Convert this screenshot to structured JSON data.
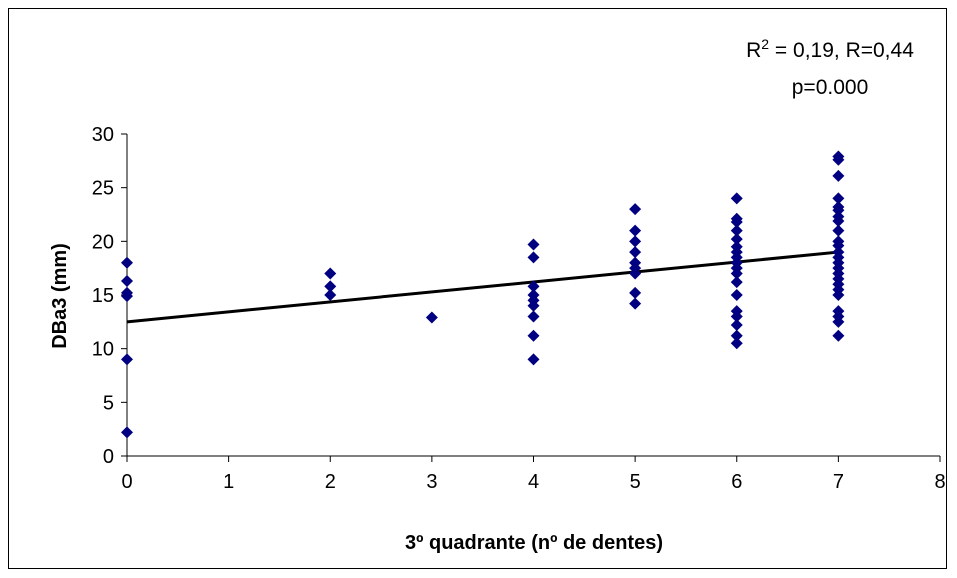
{
  "chart_data": {
    "type": "scatter",
    "xlabel": "3º quadrante (nº de dentes)",
    "ylabel": "DBa3 (mm)",
    "xlim": [
      0,
      8
    ],
    "ylim": [
      0,
      30
    ],
    "x_ticks": [
      0,
      1,
      2,
      3,
      4,
      5,
      6,
      7,
      8
    ],
    "y_ticks": [
      0,
      5,
      10,
      15,
      20,
      25,
      30
    ],
    "grid": false,
    "legend": "none",
    "marker_color": "#000080",
    "annotation": {
      "r2_base": "R",
      "r2_sup": "2",
      "r2_rest": " = 0,19, R=0,44",
      "p_line": "p=0.000"
    },
    "trendline": {
      "x": [
        0,
        7
      ],
      "y": [
        12.5,
        19.0
      ]
    },
    "points": [
      [
        0,
        18.0
      ],
      [
        0,
        16.3
      ],
      [
        0,
        15.2
      ],
      [
        0,
        14.9
      ],
      [
        0,
        9.0
      ],
      [
        0,
        2.2
      ],
      [
        2,
        17.0
      ],
      [
        2,
        15.8
      ],
      [
        2,
        15.0
      ],
      [
        3,
        12.9
      ],
      [
        4,
        19.7
      ],
      [
        4,
        18.5
      ],
      [
        4,
        15.8
      ],
      [
        4,
        15.0
      ],
      [
        4,
        14.5
      ],
      [
        4,
        14.0
      ],
      [
        4,
        13.0
      ],
      [
        4,
        11.2
      ],
      [
        4,
        9.0
      ],
      [
        5,
        23.0
      ],
      [
        5,
        21.0
      ],
      [
        5,
        20.0
      ],
      [
        5,
        19.0
      ],
      [
        5,
        18.0
      ],
      [
        5,
        17.5
      ],
      [
        5,
        17.0
      ],
      [
        5,
        15.2
      ],
      [
        5,
        14.2
      ],
      [
        6,
        24.0
      ],
      [
        6,
        22.1
      ],
      [
        6,
        21.8
      ],
      [
        6,
        21.0
      ],
      [
        6,
        20.2
      ],
      [
        6,
        19.5
      ],
      [
        6,
        19.0
      ],
      [
        6,
        18.5
      ],
      [
        6,
        18.0
      ],
      [
        6,
        17.5
      ],
      [
        6,
        17.0
      ],
      [
        6,
        16.2
      ],
      [
        6,
        15.0
      ],
      [
        6,
        13.5
      ],
      [
        6,
        13.0
      ],
      [
        6,
        12.2
      ],
      [
        6,
        11.2
      ],
      [
        6,
        10.5
      ],
      [
        7,
        27.9
      ],
      [
        7,
        27.6
      ],
      [
        7,
        26.1
      ],
      [
        7,
        24.0
      ],
      [
        7,
        23.2
      ],
      [
        7,
        22.9
      ],
      [
        7,
        22.3
      ],
      [
        7,
        21.9
      ],
      [
        7,
        21.0
      ],
      [
        7,
        20.0
      ],
      [
        7,
        19.6
      ],
      [
        7,
        19.0
      ],
      [
        7,
        18.5
      ],
      [
        7,
        18.0
      ],
      [
        7,
        17.5
      ],
      [
        7,
        17.0
      ],
      [
        7,
        16.5
      ],
      [
        7,
        16.0
      ],
      [
        7,
        15.5
      ],
      [
        7,
        15.0
      ],
      [
        7,
        13.5
      ],
      [
        7,
        13.0
      ],
      [
        7,
        12.5
      ],
      [
        7,
        11.2
      ]
    ]
  }
}
